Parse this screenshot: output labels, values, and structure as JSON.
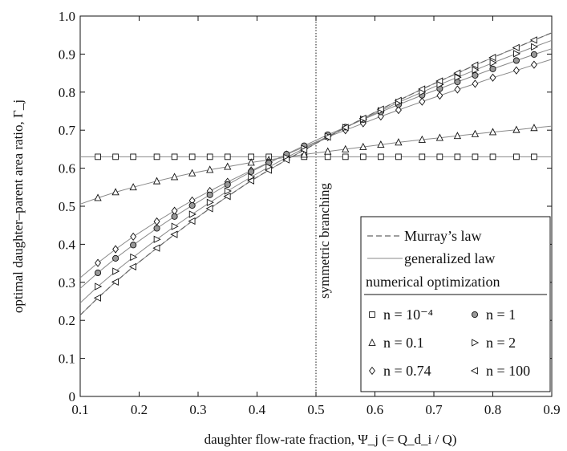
{
  "chart_data": {
    "type": "line",
    "xlabel": "daughter flow-rate fraction, Ψ_j (= Q_d_i / Q)",
    "ylabel": "optimal daughter–parent area ratio, Γ_j",
    "xlim": [
      0.1,
      0.9
    ],
    "ylim": [
      0,
      1.0
    ],
    "xticks": [
      "0.1",
      "0.2",
      "0.3",
      "0.4",
      "0.5",
      "0.6",
      "0.7",
      "0.8",
      "0.9"
    ],
    "yticks": [
      "0",
      "0.1",
      "0.2",
      "0.3",
      "0.4",
      "0.5",
      "0.6",
      "0.7",
      "0.8",
      "0.9",
      "1.0"
    ],
    "grid": false,
    "annotation": {
      "text": "symmetric branching",
      "x": 0.5
    },
    "legend": {
      "placement": "right",
      "murray": "Murray’s law",
      "generalized": "generalized law",
      "numerical_title": "numerical optimization",
      "entries": [
        {
          "symbol": "square",
          "label": "n = 10⁻⁴"
        },
        {
          "symbol": "circle",
          "label": "n = 1"
        },
        {
          "symbol": "triangle-up",
          "label": "n = 0.1"
        },
        {
          "symbol": "triangle-right",
          "label": "n = 2"
        },
        {
          "symbol": "diamond",
          "label": "n = 0.74"
        },
        {
          "symbol": "triangle-left",
          "label": "n = 100"
        }
      ]
    },
    "x": [
      0.13,
      0.16,
      0.19,
      0.23,
      0.26,
      0.29,
      0.32,
      0.35,
      0.39,
      0.42,
      0.45,
      0.48,
      0.52,
      0.55,
      0.58,
      0.61,
      0.64,
      0.68,
      0.71,
      0.74,
      0.77,
      0.8,
      0.84,
      0.87
    ],
    "series": [
      {
        "name": "n = 10⁻⁴",
        "marker": "square",
        "exponent": 0.0001,
        "values": [
          0.63,
          0.63,
          0.63,
          0.63,
          0.63,
          0.63,
          0.63,
          0.63,
          0.63,
          0.63,
          0.63,
          0.63,
          0.63,
          0.63,
          0.63,
          0.63,
          0.63,
          0.63,
          0.63,
          0.63,
          0.63,
          0.63,
          0.63,
          0.63
        ]
      },
      {
        "name": "n = 0.1",
        "marker": "triangle-up",
        "exponent": 0.1,
        "values": [
          0.522,
          0.537,
          0.55,
          0.566,
          0.577,
          0.587,
          0.596,
          0.604,
          0.615,
          0.622,
          0.629,
          0.636,
          0.644,
          0.65,
          0.656,
          0.662,
          0.668,
          0.675,
          0.68,
          0.685,
          0.69,
          0.695,
          0.701,
          0.706
        ]
      },
      {
        "name": "n = 0.74",
        "marker": "diamond",
        "exponent": 0.74,
        "values": [
          0.351,
          0.387,
          0.42,
          0.46,
          0.488,
          0.515,
          0.54,
          0.564,
          0.594,
          0.615,
          0.636,
          0.656,
          0.682,
          0.7,
          0.718,
          0.736,
          0.753,
          0.775,
          0.791,
          0.807,
          0.822,
          0.838,
          0.857,
          0.872
        ]
      },
      {
        "name": "n = 1",
        "marker": "circle",
        "exponent": 1,
        "values": [
          0.325,
          0.363,
          0.398,
          0.442,
          0.473,
          0.502,
          0.53,
          0.557,
          0.591,
          0.614,
          0.637,
          0.659,
          0.688,
          0.708,
          0.728,
          0.748,
          0.767,
          0.792,
          0.809,
          0.827,
          0.844,
          0.861,
          0.883,
          0.899
        ]
      },
      {
        "name": "n = 2",
        "marker": "triangle-right",
        "exponent": 2,
        "values": [
          0.289,
          0.329,
          0.366,
          0.413,
          0.447,
          0.479,
          0.51,
          0.54,
          0.577,
          0.603,
          0.628,
          0.652,
          0.684,
          0.707,
          0.729,
          0.751,
          0.773,
          0.8,
          0.82,
          0.839,
          0.858,
          0.877,
          0.901,
          0.919
        ]
      },
      {
        "name": "n = 100",
        "marker": "triangle-left",
        "exponent": 100,
        "values": [
          0.259,
          0.301,
          0.341,
          0.39,
          0.426,
          0.461,
          0.494,
          0.526,
          0.567,
          0.595,
          0.622,
          0.648,
          0.682,
          0.707,
          0.731,
          0.755,
          0.778,
          0.808,
          0.829,
          0.85,
          0.871,
          0.891,
          0.917,
          0.937
        ]
      }
    ]
  }
}
